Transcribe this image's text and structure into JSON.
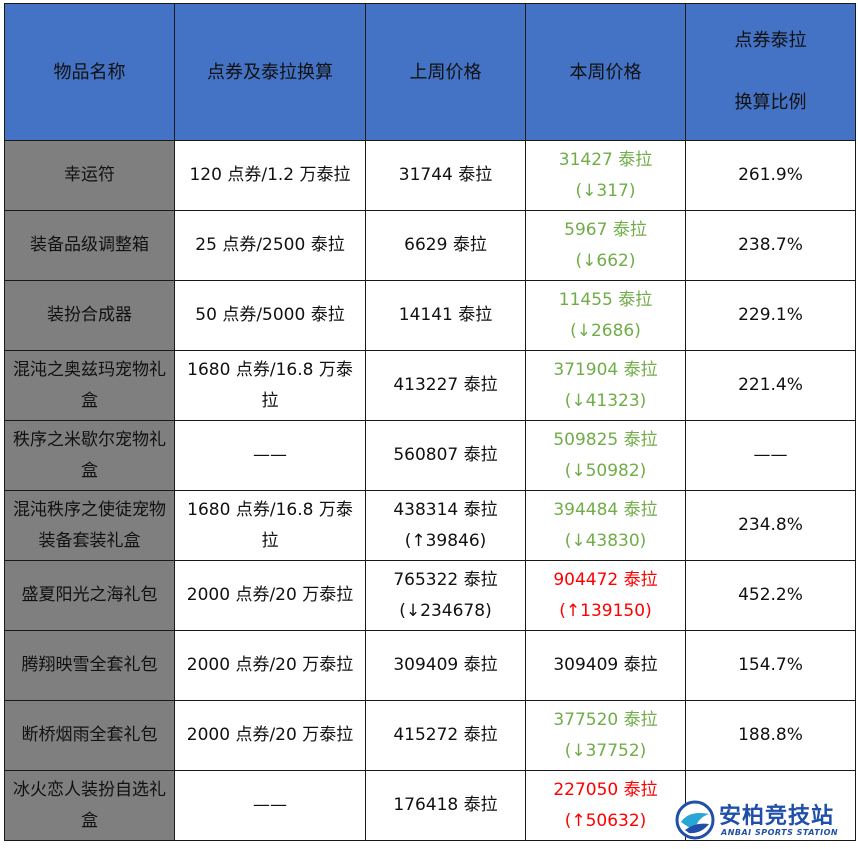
{
  "headers": {
    "name": "物品名称",
    "exchange": "点券及泰拉换算",
    "last_week": "上周价格",
    "this_week": "本周价格",
    "ratio_line1": "点券泰拉",
    "ratio_line2": "换算比例"
  },
  "rows": [
    {
      "name": "幸运符",
      "exchange": "120 点券/1.2 万泰拉",
      "last_week": "31744 泰拉",
      "last_change": "",
      "this_week": "31427 泰拉",
      "this_change": "(↓317)",
      "trend": "down",
      "ratio": "261.9%"
    },
    {
      "name": "装备品级调整箱",
      "exchange": "25 点券/2500 泰拉",
      "last_week": "6629 泰拉",
      "last_change": "",
      "this_week": "5967 泰拉",
      "this_change": "(↓662)",
      "trend": "down",
      "ratio": "238.7%"
    },
    {
      "name": "装扮合成器",
      "exchange": "50 点券/5000 泰拉",
      "last_week": "14141 泰拉",
      "last_change": "",
      "this_week": "11455 泰拉",
      "this_change": "(↓2686)",
      "trend": "down",
      "ratio": "229.1%"
    },
    {
      "name": "混沌之奥兹玛宠物礼盒",
      "exchange": "1680 点券/16.8 万泰拉",
      "last_week": "413227 泰拉",
      "last_change": "",
      "this_week": "371904 泰拉",
      "this_change": "(↓41323)",
      "trend": "down",
      "ratio": "221.4%"
    },
    {
      "name": "秩序之米歇尔宠物礼盒",
      "exchange": "——",
      "last_week": "560807 泰拉",
      "last_change": "",
      "this_week": "509825 泰拉",
      "this_change": "(↓50982)",
      "trend": "down",
      "ratio": "——"
    },
    {
      "name": "混沌秩序之使徒宠物装备套装礼盒",
      "exchange": "1680 点券/16.8 万泰拉",
      "last_week": "438314 泰拉",
      "last_change": "(↑39846)",
      "this_week": "394484 泰拉",
      "this_change": "(↓43830)",
      "trend": "down",
      "ratio": "234.8%"
    },
    {
      "name": "盛夏阳光之海礼包",
      "exchange": "2000 点券/20 万泰拉",
      "last_week": "765322 泰拉",
      "last_change": "(↓234678)",
      "this_week": "904472 泰拉",
      "this_change": "(↑139150)",
      "trend": "up",
      "ratio": "452.2%"
    },
    {
      "name": "腾翔映雪全套礼包",
      "exchange": "2000 点券/20 万泰拉",
      "last_week": "309409 泰拉",
      "last_change": "",
      "this_week": "309409 泰拉",
      "this_change": "",
      "trend": "flat",
      "ratio": "154.7%"
    },
    {
      "name": "断桥烟雨全套礼包",
      "exchange": "2000 点券/20 万泰拉",
      "last_week": "415272 泰拉",
      "last_change": "",
      "this_week": "377520 泰拉",
      "this_change": "(↓37752)",
      "trend": "down",
      "ratio": "188.8%"
    },
    {
      "name": "冰火恋人装扮自选礼盒",
      "exchange": "——",
      "last_week": "176418 泰拉",
      "last_change": "",
      "this_week": "227050 泰拉",
      "this_change": "(↑50632)",
      "trend": "up",
      "ratio": ""
    }
  ],
  "colors": {
    "header_bg": "#4472c4",
    "name_bg": "#7f7f7f",
    "down": "#70ad47",
    "up": "#ff0000"
  },
  "watermark": {
    "title": "安柏竞技站",
    "subtitle": "ANBAI SPORTS STATION"
  }
}
